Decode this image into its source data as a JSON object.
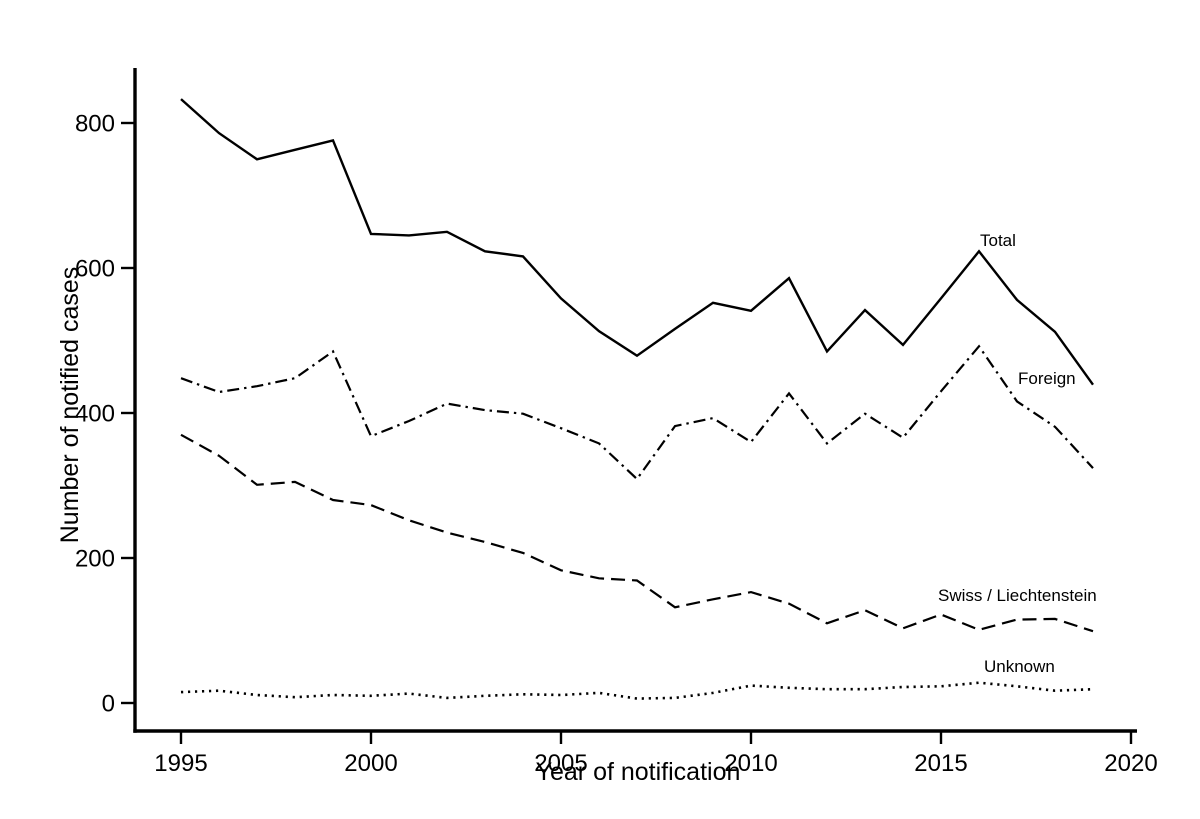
{
  "chart_data": {
    "type": "line",
    "title": "",
    "xlabel": "Year of notification",
    "ylabel": "Number of notified cases",
    "x": [
      1995,
      1996,
      1997,
      1998,
      1999,
      2000,
      2001,
      2002,
      2003,
      2004,
      2005,
      2006,
      2007,
      2008,
      2009,
      2010,
      2011,
      2012,
      2013,
      2014,
      2015,
      2016,
      2017,
      2018,
      2019
    ],
    "x_ticks": [
      1995,
      2000,
      2005,
      2010,
      2015,
      2020
    ],
    "y_ticks": [
      0,
      200,
      400,
      600,
      800
    ],
    "xlim": [
      1995,
      2020
    ],
    "ylim": [
      0,
      860
    ],
    "grid": false,
    "legend_position": "inline-labels-right",
    "line_color": "#000000",
    "background": "#ffffff",
    "series": [
      {
        "name": "Total",
        "dash": "solid",
        "values": [
          833,
          786,
          750,
          763,
          776,
          647,
          645,
          650,
          623,
          616,
          558,
          513,
          479,
          516,
          552,
          541,
          586,
          485,
          542,
          494,
          558,
          623,
          556,
          512,
          439
        ],
        "label_pos": {
          "x": 980,
          "y": 246
        }
      },
      {
        "name": "Foreign",
        "dash": "dashdot",
        "values": [
          448,
          429,
          437,
          448,
          485,
          368,
          389,
          413,
          404,
          399,
          379,
          358,
          309,
          382,
          393,
          360,
          427,
          358,
          399,
          366,
          430,
          492,
          416,
          381,
          324
        ],
        "label_pos": {
          "x": 1018,
          "y": 384
        }
      },
      {
        "name": "Swiss / Liechtenstein",
        "dash": "dashed",
        "values": [
          370,
          341,
          301,
          305,
          280,
          273,
          252,
          235,
          222,
          207,
          183,
          172,
          169,
          132,
          143,
          153,
          137,
          110,
          128,
          103,
          122,
          101,
          115,
          116,
          99
        ],
        "label_pos": {
          "x": 938,
          "y": 601
        }
      },
      {
        "name": "Unknown",
        "dash": "dotted",
        "values": [
          15,
          17,
          11,
          8,
          11,
          10,
          13,
          7,
          10,
          12,
          11,
          14,
          6,
          7,
          14,
          24,
          21,
          19,
          19,
          22,
          23,
          28,
          23,
          17,
          19
        ],
        "label_pos": {
          "x": 984,
          "y": 672
        }
      }
    ]
  }
}
